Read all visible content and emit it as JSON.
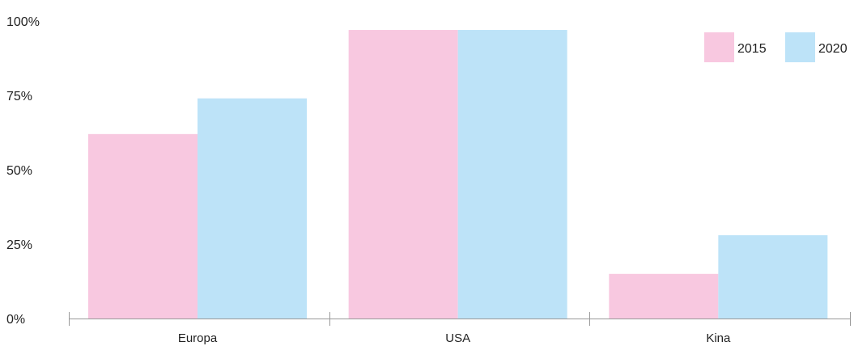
{
  "chart_data": {
    "type": "bar",
    "categories": [
      "Europa",
      "USA",
      "Kina"
    ],
    "series": [
      {
        "name": "2015",
        "values": [
          62,
          97,
          15
        ],
        "color": "#f8c8e0"
      },
      {
        "name": "2020",
        "values": [
          74,
          97,
          28
        ],
        "color": "#bde3f8"
      }
    ],
    "ylim": [
      0,
      100
    ],
    "y_ticks": [
      0,
      25,
      50,
      75,
      100
    ],
    "y_tick_labels": [
      "0%",
      "25%",
      "50%",
      "75%",
      "100%"
    ],
    "grid": false,
    "legend_position": "top-right"
  }
}
